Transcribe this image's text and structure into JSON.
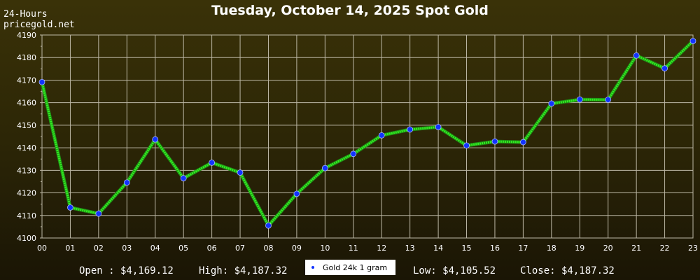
{
  "chart_data": {
    "type": "line",
    "title": "Tuesday, October 14, 2025 Spot Gold",
    "subtitle_line1": "24-Hours",
    "subtitle_line2": "pricegold.net",
    "xlabel": "",
    "ylabel": "",
    "x": [
      "00",
      "01",
      "02",
      "03",
      "04",
      "05",
      "06",
      "07",
      "08",
      "09",
      "10",
      "11",
      "12",
      "13",
      "14",
      "15",
      "16",
      "17",
      "18",
      "19",
      "20",
      "21",
      "22",
      "23"
    ],
    "series": [
      {
        "name": "Gold 24k 1 gram",
        "values": [
          4169.12,
          4113.5,
          4110.8,
          4124.6,
          4143.7,
          4126.5,
          4133.4,
          4129.0,
          4105.52,
          4119.6,
          4131.0,
          4137.3,
          4145.5,
          4148.1,
          4149.2,
          4141.0,
          4142.8,
          4142.5,
          4159.6,
          4161.4,
          4161.3,
          4180.9,
          4175.2,
          4187.32
        ]
      }
    ],
    "ylim": [
      4100,
      4190
    ],
    "yticks": [
      "4100",
      "4110",
      "4120",
      "4130",
      "4140",
      "4150",
      "4160",
      "4170",
      "4180",
      "4190"
    ],
    "grid": true,
    "colors": {
      "line": "#33ee22",
      "marker": "#1133ff",
      "grid": "#bdb8a6"
    }
  },
  "footer": {
    "open": "Open : $4,169.12",
    "high": "High: $4,187.32",
    "legend": "Gold 24k 1 gram",
    "low": "Low: $4,105.52",
    "close": "Close: $4,187.32"
  }
}
